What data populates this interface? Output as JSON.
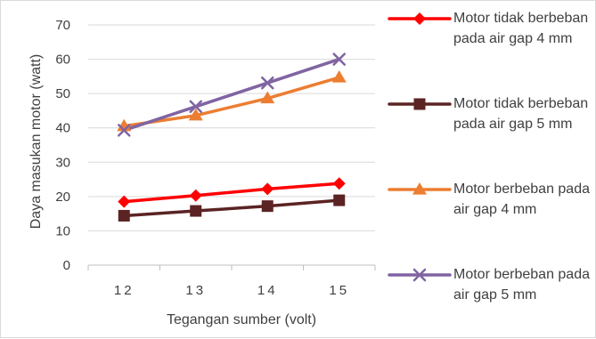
{
  "chart_data": {
    "type": "line",
    "xlabel": "Tegangan sumber (volt)",
    "ylabel": "Daya masukan motor (watt)",
    "categories": [
      "12",
      "13",
      "14",
      "15"
    ],
    "ylim": [
      0,
      70
    ],
    "yticks": [
      "0",
      "10",
      "20",
      "30",
      "40",
      "50",
      "60",
      "70"
    ],
    "grid": true,
    "legend_position": "right",
    "series": [
      {
        "name": "Motor tidak berbeban pada air gap 4 mm",
        "values": [
          18.5,
          20.3,
          22.2,
          23.8
        ],
        "color": "#ff0000",
        "marker": "diamond"
      },
      {
        "name": "Motor tidak berbeban pada air gap 5 mm",
        "values": [
          14.4,
          15.8,
          17.2,
          18.9
        ],
        "color": "#5b2323",
        "marker": "square"
      },
      {
        "name": "Motor berbeban pada air gap 4 mm",
        "values": [
          40.5,
          43.6,
          48.6,
          54.7
        ],
        "color": "#ed7d31",
        "marker": "triangle"
      },
      {
        "name": "Motor berbeban pada air gap 5 mm",
        "values": [
          39.3,
          46.2,
          53.1,
          60.0
        ],
        "color": "#8064a2",
        "marker": "x"
      }
    ]
  }
}
